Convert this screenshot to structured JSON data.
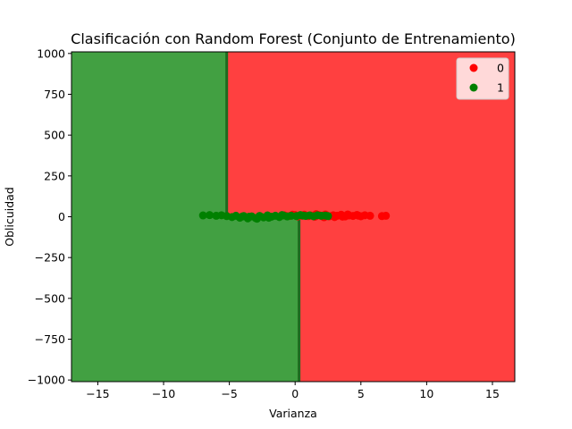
{
  "chart_data": {
    "type": "scatter",
    "title": "Clasificación con Random Forest (Conjunto de Entrenamiento)",
    "xlabel": "Varianza",
    "ylabel": "Oblicuidad",
    "xlim": [
      -17,
      16.7
    ],
    "ylim": [
      -1010,
      1010
    ],
    "x_ticks": [
      -15,
      -10,
      -5,
      0,
      5,
      10,
      15
    ],
    "x_tick_labels": [
      "−15",
      "−10",
      "−5",
      "0",
      "5",
      "10",
      "15"
    ],
    "y_ticks": [
      -1000,
      -750,
      -500,
      -250,
      0,
      250,
      500,
      750,
      1000
    ],
    "y_tick_labels": [
      "−1000",
      "−750",
      "−500",
      "−250",
      "0",
      "250",
      "500",
      "750",
      "1000"
    ],
    "grid": false,
    "legend_position": "top-right",
    "decision_regions": {
      "colors": {
        "0": "#ff4040",
        "1": "#42a042"
      },
      "boundary": [
        {
          "x": -5.2,
          "y_from": 1010,
          "y_to": 0
        },
        {
          "x": 0.3,
          "y_from": 0,
          "y_to": -1010
        }
      ]
    },
    "series": [
      {
        "name": "0",
        "color": "#ff0000",
        "points": [
          [
            -0.8,
            8
          ],
          [
            -0.4,
            5
          ],
          [
            0.0,
            10
          ],
          [
            0.2,
            2
          ],
          [
            0.5,
            6
          ],
          [
            0.7,
            12
          ],
          [
            1.0,
            4
          ],
          [
            1.2,
            8
          ],
          [
            1.5,
            0
          ],
          [
            1.8,
            10
          ],
          [
            2.0,
            5
          ],
          [
            2.3,
            14
          ],
          [
            2.6,
            3
          ],
          [
            2.9,
            9
          ],
          [
            3.2,
            6
          ],
          [
            3.5,
            12
          ],
          [
            3.8,
            2
          ],
          [
            4.1,
            8
          ],
          [
            4.4,
            5
          ],
          [
            4.7,
            11
          ],
          [
            5.0,
            3
          ],
          [
            5.3,
            9
          ],
          [
            5.7,
            6
          ],
          [
            6.6,
            4
          ],
          [
            6.9,
            6
          ],
          [
            3.0,
            -2
          ],
          [
            4.0,
            14
          ],
          [
            2.2,
            -3
          ],
          [
            1.6,
            16
          ],
          [
            -0.2,
            12
          ],
          [
            3.6,
            1
          ],
          [
            4.8,
            7
          ]
        ]
      },
      {
        "name": "1",
        "color": "#008000",
        "points": [
          [
            -7.0,
            8
          ],
          [
            -6.5,
            10
          ],
          [
            -6.0,
            6
          ],
          [
            -5.6,
            9
          ],
          [
            -5.2,
            4
          ],
          [
            -4.8,
            -2
          ],
          [
            -4.5,
            6
          ],
          [
            -4.2,
            -6
          ],
          [
            -3.9,
            4
          ],
          [
            -3.6,
            -10
          ],
          [
            -3.3,
            2
          ],
          [
            -3.0,
            -8
          ],
          [
            -2.7,
            5
          ],
          [
            -2.4,
            -4
          ],
          [
            -2.1,
            8
          ],
          [
            -1.8,
            0
          ],
          [
            -1.5,
            6
          ],
          [
            -1.2,
            -2
          ],
          [
            -0.9,
            8
          ],
          [
            -0.6,
            2
          ],
          [
            -0.3,
            6
          ],
          [
            0.1,
            4
          ],
          [
            0.4,
            10
          ],
          [
            0.8,
            5
          ],
          [
            1.1,
            8
          ],
          [
            1.4,
            3
          ],
          [
            1.7,
            9
          ],
          [
            2.0,
            6
          ],
          [
            2.3,
            7
          ],
          [
            2.5,
            4
          ],
          [
            -3.5,
            0
          ],
          [
            -2.9,
            -12
          ],
          [
            -4.0,
            2
          ],
          [
            -1.0,
            10
          ],
          [
            -2.0,
            -6
          ],
          [
            0.6,
            7
          ]
        ]
      }
    ]
  }
}
